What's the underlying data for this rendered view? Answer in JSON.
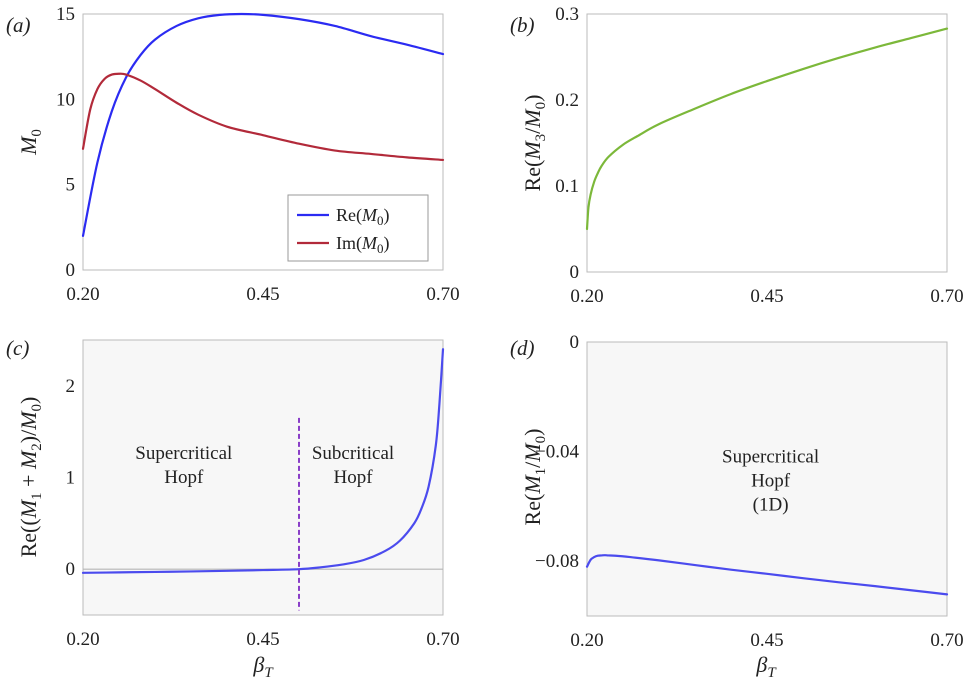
{
  "chart_data": [
    {
      "panel": "(a)",
      "type": "line",
      "ylabel": "M0",
      "xlim": [
        0.2,
        0.7
      ],
      "ylim": [
        0,
        15
      ],
      "xticks": [
        "0.20",
        "0.45",
        "0.70"
      ],
      "xtick_values": [
        0.2,
        0.45,
        0.7
      ],
      "yticks": [
        "0",
        "5",
        "10",
        "15"
      ],
      "ytick_values": [
        0,
        5,
        10,
        15
      ],
      "legend_position": "lower-right",
      "series": [
        {
          "name": "Re(M0)",
          "color": "#2b2bf2",
          "x": [
            0.2,
            0.22,
            0.24,
            0.26,
            0.28,
            0.3,
            0.33,
            0.36,
            0.39,
            0.42,
            0.45,
            0.5,
            0.55,
            0.6,
            0.65,
            0.7
          ],
          "y": [
            2.0,
            6.3,
            9.3,
            11.3,
            12.6,
            13.5,
            14.3,
            14.75,
            14.95,
            15.0,
            14.95,
            14.7,
            14.3,
            13.7,
            13.2,
            12.65
          ]
        },
        {
          "name": "Im(M0)",
          "color": "#b22a3a",
          "x": [
            0.2,
            0.21,
            0.22,
            0.23,
            0.24,
            0.25,
            0.26,
            0.28,
            0.3,
            0.33,
            0.36,
            0.4,
            0.45,
            0.5,
            0.55,
            0.6,
            0.65,
            0.7
          ],
          "y": [
            7.1,
            9.4,
            10.6,
            11.2,
            11.45,
            11.5,
            11.45,
            11.1,
            10.6,
            9.8,
            9.1,
            8.4,
            7.9,
            7.4,
            7.0,
            6.8,
            6.6,
            6.45
          ]
        }
      ]
    },
    {
      "panel": "(b)",
      "type": "line",
      "ylabel": "Re(M3/M0)",
      "xlim": [
        0.2,
        0.7
      ],
      "ylim": [
        0,
        0.3
      ],
      "xticks": [
        "0.20",
        "0.45",
        "0.70"
      ],
      "xtick_values": [
        0.2,
        0.45,
        0.7
      ],
      "yticks": [
        "0",
        "0.1",
        "0.2",
        "0.3"
      ],
      "ytick_values": [
        0,
        0.1,
        0.2,
        0.3
      ],
      "series": [
        {
          "color": "#7cb83a",
          "x": [
            0.2,
            0.202,
            0.205,
            0.21,
            0.215,
            0.22,
            0.23,
            0.25,
            0.27,
            0.3,
            0.35,
            0.4,
            0.45,
            0.5,
            0.55,
            0.6,
            0.65,
            0.7
          ],
          "y": [
            0.05,
            0.075,
            0.09,
            0.105,
            0.115,
            0.123,
            0.134,
            0.148,
            0.158,
            0.172,
            0.19,
            0.207,
            0.222,
            0.236,
            0.249,
            0.261,
            0.272,
            0.283
          ]
        }
      ]
    },
    {
      "panel": "(c)",
      "type": "line",
      "xlabel": "βT",
      "ylabel": "Re((M1 + M2)/M0)",
      "xlim": [
        0.2,
        0.7
      ],
      "ylim": [
        -0.5,
        2.5
      ],
      "xticks": [
        "0.20",
        "0.45",
        "0.70"
      ],
      "xtick_values": [
        0.2,
        0.45,
        0.7
      ],
      "yticks": [
        "0",
        "1",
        "2"
      ],
      "ytick_values": [
        0,
        1,
        2
      ],
      "zero_line": true,
      "vertical_marker": {
        "x": 0.5,
        "y_range": [
          -0.45,
          1.65
        ],
        "color": "#8a3fc8",
        "style": "dashed"
      },
      "annotations": [
        {
          "lines": [
            "Supercritical",
            "Hopf"
          ],
          "x": 0.34,
          "y": 1.2
        },
        {
          "lines": [
            "Subcritical",
            "Hopf"
          ],
          "x": 0.575,
          "y": 1.2
        }
      ],
      "series": [
        {
          "color": "#4b4bee",
          "x": [
            0.2,
            0.25,
            0.3,
            0.35,
            0.4,
            0.45,
            0.5,
            0.53,
            0.56,
            0.59,
            0.62,
            0.64,
            0.66,
            0.67,
            0.68,
            0.69,
            0.695,
            0.7
          ],
          "y": [
            -0.04,
            -0.035,
            -0.03,
            -0.025,
            -0.018,
            -0.01,
            0.0,
            0.02,
            0.05,
            0.1,
            0.2,
            0.31,
            0.5,
            0.66,
            0.9,
            1.35,
            1.8,
            2.4
          ]
        }
      ]
    },
    {
      "panel": "(d)",
      "type": "line",
      "xlabel": "βT",
      "ylabel": "Re(M1/M0)",
      "xlim": [
        0.2,
        0.7
      ],
      "ylim": [
        -0.1,
        0.0
      ],
      "xticks": [
        "0.20",
        "0.45",
        "0.70"
      ],
      "xtick_values": [
        0.2,
        0.45,
        0.7
      ],
      "yticks": [
        "0",
        "−0.04",
        "−0.08"
      ],
      "ytick_values": [
        0,
        -0.04,
        -0.08
      ],
      "annotations": [
        {
          "lines": [
            "Supercritical",
            "Hopf",
            "(1D)"
          ],
          "x": 0.455,
          "y": -0.044
        }
      ],
      "series": [
        {
          "color": "#4b4bee",
          "x": [
            0.2,
            0.205,
            0.21,
            0.215,
            0.22,
            0.225,
            0.23,
            0.24,
            0.26,
            0.3,
            0.35,
            0.4,
            0.45,
            0.5,
            0.55,
            0.6,
            0.65,
            0.7
          ],
          "y": [
            -0.082,
            -0.0795,
            -0.0785,
            -0.078,
            -0.0779,
            -0.0778,
            -0.0779,
            -0.078,
            -0.0785,
            -0.0797,
            -0.0814,
            -0.0831,
            -0.0846,
            -0.0862,
            -0.0877,
            -0.0891,
            -0.0906,
            -0.0921
          ]
        }
      ]
    }
  ]
}
